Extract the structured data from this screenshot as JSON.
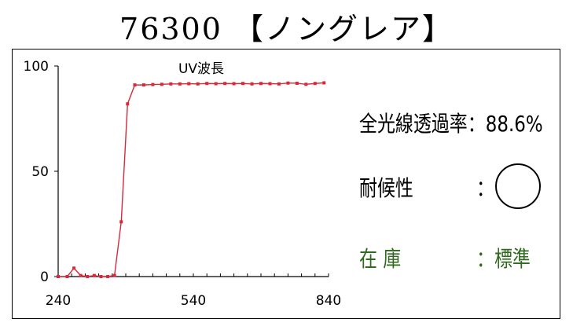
{
  "header": {
    "title": "76300 【ノングレア】"
  },
  "specs": {
    "transmittance_label": "全光線透過率",
    "transmittance_value": "：88.6%",
    "weather_label": "耐候性",
    "weather_sep": "：",
    "weather_icon": "circle-mark",
    "stock_label": "在 庫",
    "stock_value": "：標準"
  },
  "colors": {
    "series": "#d42a3a",
    "stock_text": "#2f6a1e"
  },
  "chart_data": {
    "type": "line",
    "title": "UV波長",
    "xlabel": "",
    "ylabel": "",
    "xlim": [
      240,
      840
    ],
    "ylim": [
      0,
      100
    ],
    "xticks": [
      240,
      540,
      840
    ],
    "yticks": [
      0,
      50,
      100
    ],
    "grid": false,
    "series": [
      {
        "values": [
          [
            240,
            0
          ],
          [
            260,
            0
          ],
          [
            275,
            4
          ],
          [
            290,
            0.5
          ],
          [
            305,
            0
          ],
          [
            320,
            0.5
          ],
          [
            335,
            0
          ],
          [
            350,
            0
          ],
          [
            365,
            0.5
          ],
          [
            380,
            26
          ],
          [
            394,
            82
          ],
          [
            410,
            91
          ],
          [
            430,
            91
          ],
          [
            450,
            91.2
          ],
          [
            470,
            91.3
          ],
          [
            490,
            91.5
          ],
          [
            510,
            91.5
          ],
          [
            530,
            91.6
          ],
          [
            550,
            91.5
          ],
          [
            570,
            91.7
          ],
          [
            590,
            91.6
          ],
          [
            610,
            91.7
          ],
          [
            630,
            91.6
          ],
          [
            650,
            91.7
          ],
          [
            670,
            91.5
          ],
          [
            690,
            91.7
          ],
          [
            710,
            91.6
          ],
          [
            730,
            91.5
          ],
          [
            750,
            91.9
          ],
          [
            770,
            91.8
          ],
          [
            790,
            91.3
          ],
          [
            810,
            91.7
          ],
          [
            830,
            92
          ]
        ]
      }
    ]
  }
}
